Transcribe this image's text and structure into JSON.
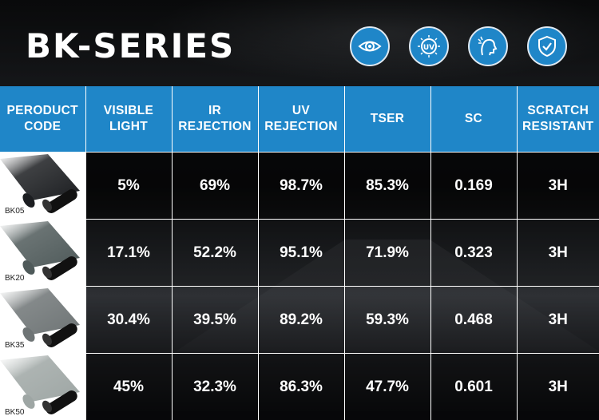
{
  "title": "BK-SERIES",
  "icons": [
    {
      "name": "eye-icon"
    },
    {
      "name": "uv-icon"
    },
    {
      "name": "heat-face-icon"
    },
    {
      "name": "shield-check-icon"
    }
  ],
  "colors": {
    "header_blue": "#1f86c8",
    "text": "#ffffff"
  },
  "table": {
    "headers": [
      [
        "PERODUCT",
        "CODE"
      ],
      [
        "VISIBLE",
        "LIGHT"
      ],
      [
        "IR",
        "REJECTION"
      ],
      [
        "UV",
        "REJECTION"
      ],
      [
        "TSER"
      ],
      [
        "SC"
      ],
      [
        "SCRATCH",
        "RESISTANT"
      ]
    ],
    "rows": [
      {
        "code": "BK05",
        "visible": "5%",
        "ir": "69%",
        "uv": "98.7%",
        "tser": "85.3%",
        "sc": "0.169",
        "scratch": "3H",
        "tint": "#1c1e21"
      },
      {
        "code": "BK20",
        "visible": "17.1%",
        "ir": "52.2%",
        "uv": "95.1%",
        "tser": "71.9%",
        "sc": "0.323",
        "scratch": "3H",
        "tint": "#4f5a5a"
      },
      {
        "code": "BK35",
        "visible": "30.4%",
        "ir": "39.5%",
        "uv": "89.2%",
        "tser": "59.3%",
        "sc": "0.468",
        "scratch": "3H",
        "tint": "#6e7475"
      },
      {
        "code": "BK50",
        "visible": "45%",
        "ir": "32.3%",
        "uv": "86.3%",
        "tser": "47.7%",
        "sc": "0.601",
        "scratch": "3H",
        "tint": "#9ea6a4"
      }
    ]
  }
}
